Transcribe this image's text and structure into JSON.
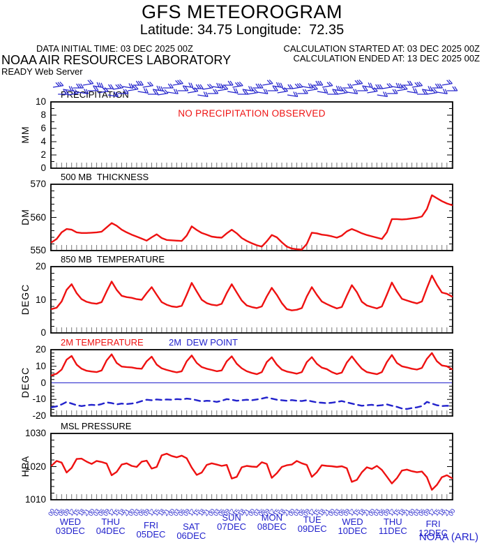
{
  "title": "GFS METEOROGRAM",
  "subtitle": "Latitude: 34.75 Longitude:  72.35",
  "header": {
    "data_initial_time": "DATA INITIAL TIME: 03 DEC 2025 00Z",
    "calc_started": "CALCULATION STARTED AT: 03 DEC 2025 00Z",
    "calc_ended": "CALCULATION ENDED AT: 13 DEC 2025 00Z",
    "org": "NOAA AIR RESOURCES LABORATORY",
    "server": "READY Web Server"
  },
  "footer": {
    "credit": "NOAA (ARL)"
  },
  "colors": {
    "red": "#ee1111",
    "blue": "#2222cc",
    "black": "#000000",
    "tick_grey": "#7a7a7a"
  },
  "wind_barbs": {
    "icon": "wind-barb-icon",
    "count": 80
  },
  "time_axis": {
    "start": "03 DEC 2025 00Z",
    "end": "13 DEC 2025 00Z",
    "hours_total": 240,
    "step_hours": 3,
    "hour_label_cycle": [
      "00",
      "03",
      "06",
      "09",
      "12",
      "15",
      "18",
      "21"
    ],
    "day_labels": [
      {
        "dow": "WED",
        "date": "03DEC"
      },
      {
        "dow": "THU",
        "date": "04DEC"
      },
      {
        "dow": "FRI",
        "date": "05DEC"
      },
      {
        "dow": "SAT",
        "date": "06DEC"
      },
      {
        "dow": "SUN",
        "date": "07DEC"
      },
      {
        "dow": "MON",
        "date": "08DEC"
      },
      {
        "dow": "TUE",
        "date": "09DEC"
      },
      {
        "dow": "WED",
        "date": "10DEC"
      },
      {
        "dow": "THU",
        "date": "11DEC"
      },
      {
        "dow": "FRI",
        "date": "12DEC"
      }
    ]
  },
  "chart_data": {
    "type": "line",
    "x_hours": {
      "start": 0,
      "end": 240,
      "step": 3
    },
    "grid": false,
    "panels": [
      {
        "id": "precip",
        "title": "PRECIPITATION",
        "unit": "MM",
        "ylim": [
          0,
          10
        ],
        "yticks": [
          0,
          2,
          4,
          6,
          8,
          10
        ],
        "minor_step": 1,
        "annotation": "NO PRECIPITATION OBSERVED",
        "series": []
      },
      {
        "id": "thickness",
        "title": "500 MB  THICKNESS",
        "unit": "DM",
        "ylim": [
          550,
          570
        ],
        "yticks": [
          550,
          560,
          570
        ],
        "minor_step": 2,
        "series": [
          {
            "id": "thickness_dm",
            "color": "red",
            "dash": false,
            "values": [
              552.5,
              553.5,
              555.5,
              556.5,
              556.3,
              555.5,
              555.3,
              555.3,
              555.4,
              555.5,
              555.7,
              557.0,
              558.3,
              557.5,
              556.3,
              555.5,
              554.8,
              554.2,
              553.6,
              553.0,
              554.0,
              554.9,
              553.8,
              553.2,
              553.1,
              553.0,
              552.9,
              554.5,
              557.3,
              556.2,
              555.3,
              554.8,
              554.2,
              554.0,
              553.9,
              555.2,
              556.3,
              555.2,
              553.8,
              552.9,
              552.2,
              551.6,
              551.2,
              552.8,
              554.7,
              554.0,
              552.5,
              551.2,
              550.6,
              550.4,
              550.3,
              552.0,
              555.4,
              555.2,
              554.8,
              554.6,
              554.3,
              553.9,
              554.5,
              555.8,
              556.5,
              555.9,
              555.2,
              554.7,
              554.3,
              553.9,
              553.5,
              555.5,
              559.5,
              559.5,
              559.4,
              559.5,
              559.7,
              559.9,
              560.3,
              562.5,
              566.7,
              565.8,
              564.9,
              564.2,
              563.7
            ]
          }
        ]
      },
      {
        "id": "t850",
        "title": "850 MB  TEMPERATURE",
        "unit": "DEGC",
        "ylim": [
          0,
          20
        ],
        "yticks": [
          0,
          10,
          20
        ],
        "minor_step": 2,
        "series": [
          {
            "id": "t850_c",
            "color": "red",
            "dash": false,
            "values": [
              7.2,
              7.6,
              9.5,
              13.0,
              14.7,
              12.0,
              10.2,
              9.4,
              9.0,
              8.8,
              9.3,
              12.5,
              15.5,
              13.0,
              11.2,
              10.8,
              10.6,
              10.2,
              10.0,
              12.0,
              13.8,
              11.5,
              9.3,
              8.5,
              8.0,
              7.8,
              8.2,
              11.5,
              15.1,
              12.5,
              10.0,
              9.0,
              8.5,
              8.3,
              8.8,
              12.0,
              14.7,
              12.2,
              9.8,
              8.3,
              7.8,
              7.5,
              8.0,
              11.0,
              13.6,
              11.5,
              9.0,
              7.2,
              6.8,
              7.0,
              7.5,
              11.0,
              13.8,
              11.5,
              9.5,
              8.7,
              8.0,
              7.4,
              7.8,
              11.2,
              14.4,
              12.3,
              9.4,
              8.3,
              7.8,
              7.4,
              8.0,
              11.5,
              15.2,
              12.5,
              10.3,
              9.8,
              9.3,
              8.9,
              9.5,
              13.5,
              17.3,
              14.5,
              12.2,
              11.8,
              11.0
            ]
          }
        ]
      },
      {
        "id": "t2m",
        "unit": "DEGC",
        "ylim": [
          -20,
          20
        ],
        "yticks": [
          -20,
          -10,
          0,
          10,
          20
        ],
        "minor_step": 2,
        "zero_line": true,
        "series": [
          {
            "id": "t2m_c",
            "label": "2M TEMPERATURE",
            "color": "red",
            "dash": false,
            "values": [
              4.5,
              5.5,
              8.0,
              14.0,
              16.2,
              11.0,
              8.5,
              7.3,
              6.8,
              6.5,
              7.5,
              13.5,
              17.2,
              12.0,
              9.8,
              9.5,
              9.3,
              8.7,
              8.5,
              13.0,
              15.8,
              11.0,
              8.8,
              7.8,
              7.0,
              6.3,
              7.0,
              13.0,
              16.5,
              12.0,
              9.5,
              8.5,
              7.8,
              7.0,
              7.5,
              13.0,
              16.0,
              11.5,
              8.8,
              7.0,
              6.0,
              5.2,
              6.5,
              12.5,
              15.4,
              11.0,
              8.0,
              6.8,
              6.2,
              5.5,
              6.5,
              12.5,
              15.5,
              11.5,
              9.2,
              8.3,
              6.5,
              5.3,
              6.2,
              12.2,
              16.0,
              12.0,
              8.5,
              6.5,
              5.8,
              5.2,
              6.5,
              12.5,
              16.8,
              12.0,
              10.0,
              9.3,
              8.5,
              8.0,
              9.0,
              14.5,
              18.0,
              13.0,
              10.5,
              10.0,
              8.2
            ]
          },
          {
            "id": "dew2m_c",
            "label": "2M  DEW POINT",
            "color": "blue",
            "dash": true,
            "values": [
              -14.8,
              -14.2,
              -13.0,
              -11.5,
              -12.5,
              -13.5,
              -14.0,
              -13.5,
              -13.2,
              -13.5,
              -12.8,
              -11.8,
              -12.2,
              -13.0,
              -12.5,
              -12.8,
              -12.5,
              -12.0,
              -11.0,
              -10.2,
              -10.5,
              -10.0,
              -10.3,
              -10.0,
              -10.2,
              -9.8,
              -10.0,
              -9.5,
              -9.8,
              -10.5,
              -11.2,
              -10.8,
              -11.0,
              -11.5,
              -10.8,
              -9.8,
              -10.2,
              -10.8,
              -10.5,
              -10.2,
              -10.5,
              -10.0,
              -9.5,
              -8.8,
              -9.5,
              -10.2,
              -10.5,
              -10.8,
              -10.4,
              -10.8,
              -11.0,
              -10.5,
              -11.2,
              -11.8,
              -12.0,
              -12.3,
              -12.0,
              -11.5,
              -11.0,
              -11.8,
              -12.5,
              -13.2,
              -13.8,
              -13.5,
              -13.2,
              -13.8,
              -13.5,
              -13.0,
              -13.8,
              -14.5,
              -15.5,
              -15.8,
              -15.2,
              -14.8,
              -14.0,
              -11.5,
              -12.5,
              -13.5,
              -14.0,
              -13.8,
              -14.0
            ]
          }
        ]
      },
      {
        "id": "mslp",
        "title": "MSL PRESSURE",
        "unit": "HPA",
        "ylim": [
          1010,
          1030
        ],
        "yticks": [
          1010,
          1020,
          1030
        ],
        "minor_step": 2,
        "series": [
          {
            "id": "mslp_hpa",
            "color": "red",
            "dash": false,
            "values": [
              1020.3,
              1021.7,
              1021.2,
              1018.2,
              1019.6,
              1022.3,
              1022.4,
              1021.5,
              1020.8,
              1021.7,
              1021.4,
              1020.9,
              1017.4,
              1018.4,
              1020.6,
              1021.0,
              1020.2,
              1019.9,
              1021.5,
              1021.8,
              1019.4,
              1019.9,
              1023.4,
              1023.9,
              1023.2,
              1022.8,
              1023.3,
              1022.5,
              1019.7,
              1017.5,
              1018.2,
              1020.5,
              1021.0,
              1020.6,
              1020.2,
              1020.5,
              1016.4,
              1016.9,
              1019.8,
              1020.2,
              1020.0,
              1019.9,
              1021.3,
              1020.8,
              1016.6,
              1018.0,
              1019.9,
              1020.4,
              1020.6,
              1021.7,
              1021.0,
              1020.5,
              1016.9,
              1018.3,
              1020.4,
              1020.2,
              1020.1,
              1019.9,
              1020.1,
              1019.5,
              1015.4,
              1016.0,
              1018.3,
              1019.8,
              1019.3,
              1020.2,
              1019.0,
              1017.0,
              1014.9,
              1016.5,
              1018.8,
              1019.1,
              1018.6,
              1018.3,
              1018.5,
              1016.8,
              1013.0,
              1014.5,
              1016.8,
              1017.4,
              1016.5
            ]
          }
        ]
      }
    ]
  }
}
